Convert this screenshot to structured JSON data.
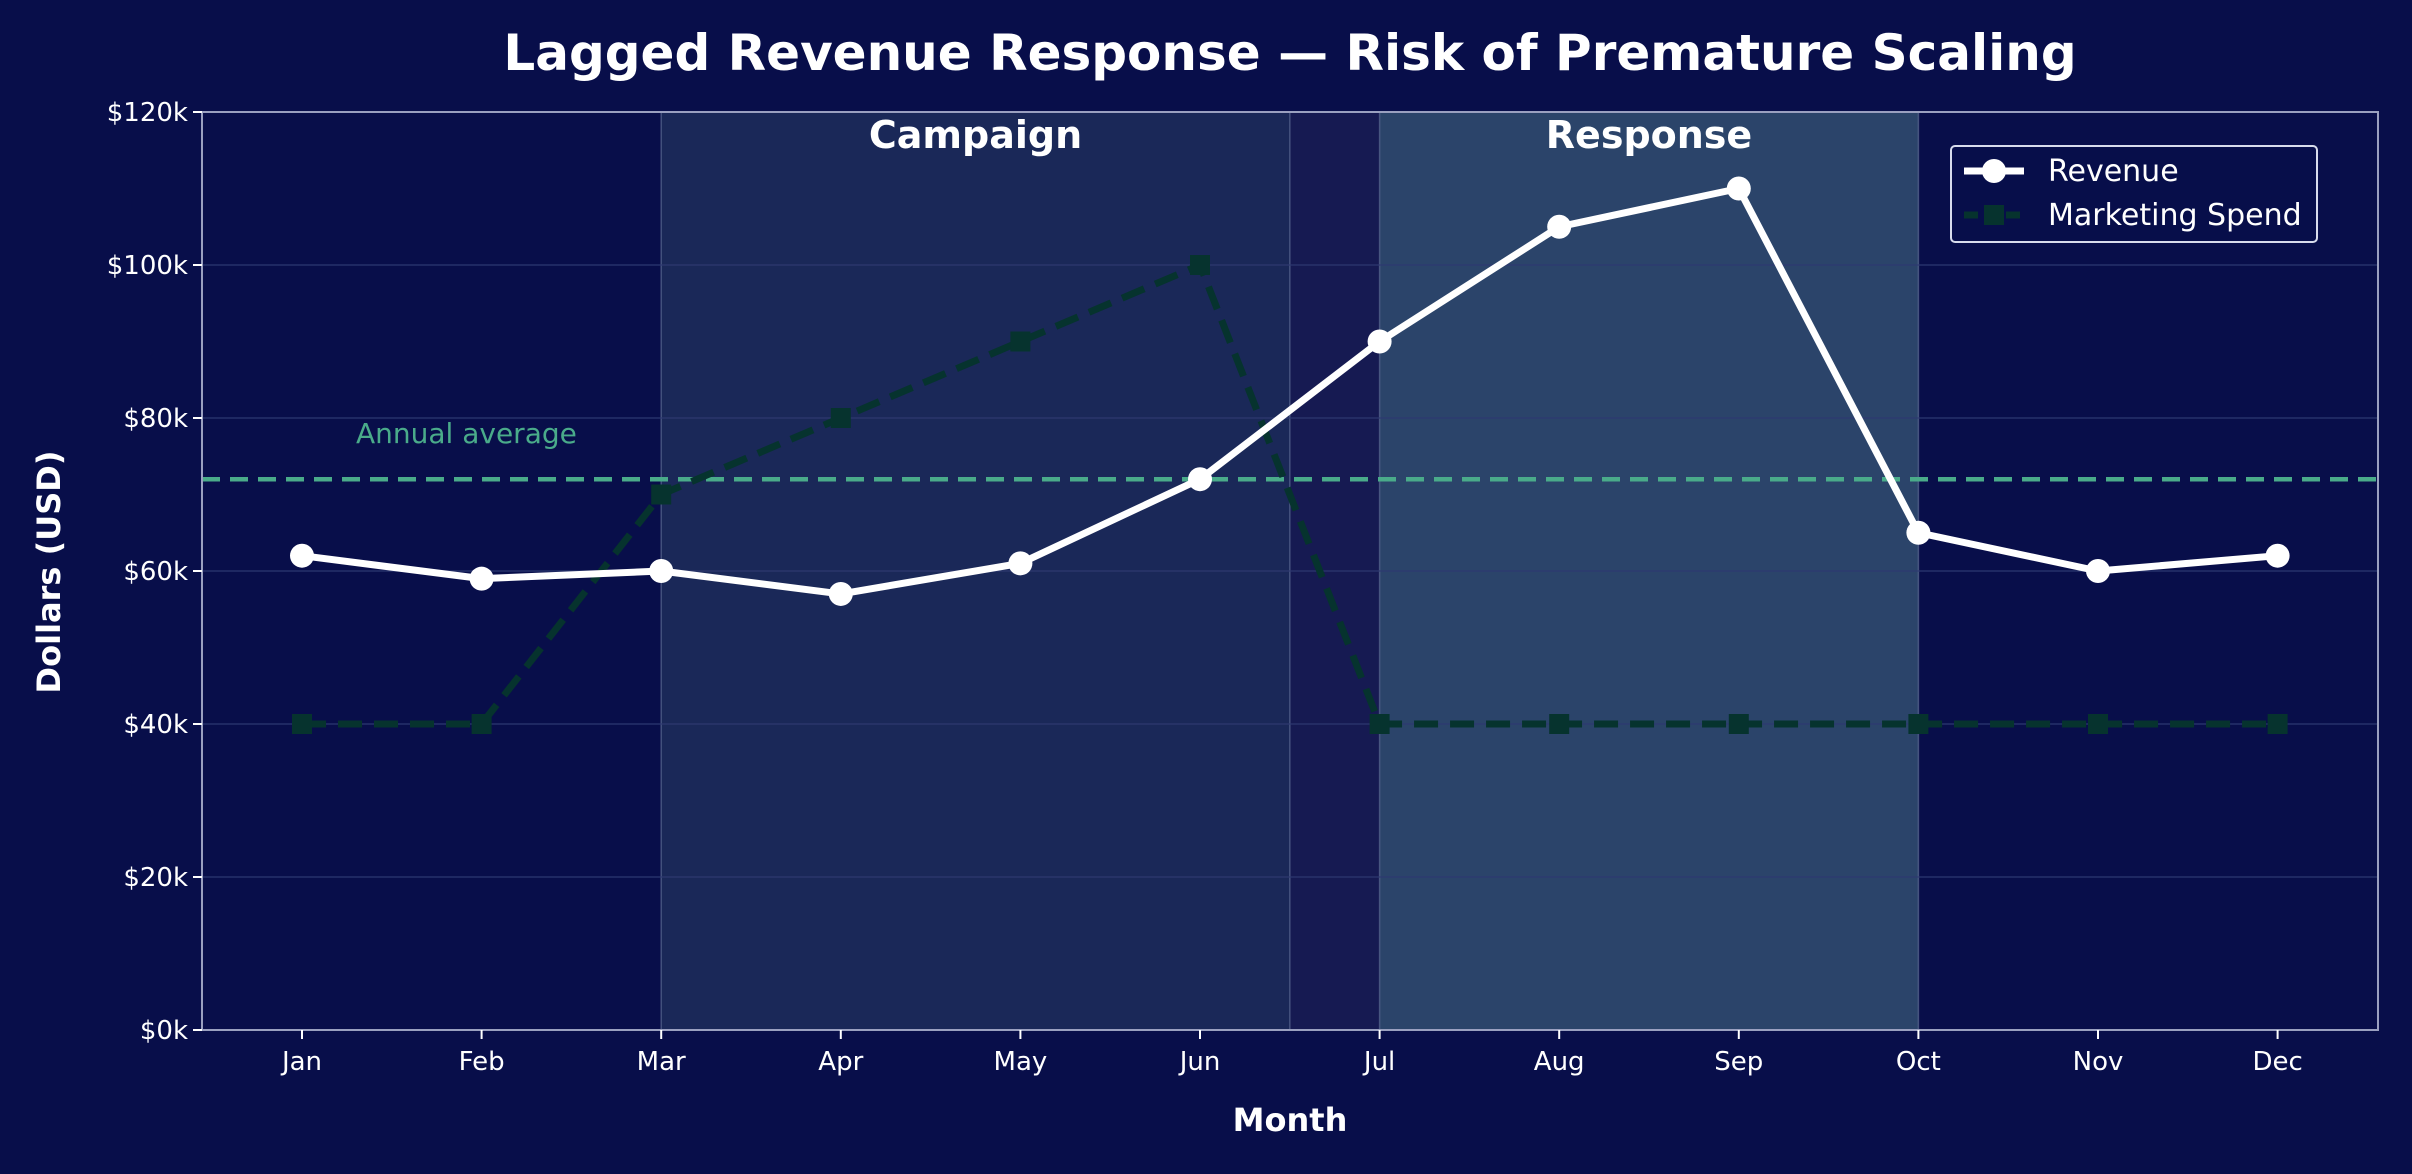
{
  "chart_data": {
    "type": "line",
    "title": "Lagged Revenue Response — Risk of Premature Scaling",
    "xlabel": "Month",
    "ylabel": "Dollars (USD)",
    "categories": [
      "Jan",
      "Feb",
      "Mar",
      "Apr",
      "May",
      "Jun",
      "Jul",
      "Aug",
      "Sep",
      "Oct",
      "Nov",
      "Dec"
    ],
    "ylim": [
      0,
      120000
    ],
    "yticks": [
      0,
      20000,
      40000,
      60000,
      80000,
      100000,
      120000
    ],
    "ytick_labels": [
      "$0k",
      "$20k",
      "$40k",
      "$60k",
      "$80k",
      "$100k",
      "$120k"
    ],
    "grid": true,
    "series": [
      {
        "name": "Revenue",
        "values": [
          62000,
          59000,
          60000,
          57000,
          61000,
          72000,
          90000,
          105000,
          110000,
          65000,
          60000,
          62000
        ],
        "color": "#ffffff",
        "style": "solid",
        "marker": "circle"
      },
      {
        "name": "Marketing Spend",
        "values": [
          40000,
          40000,
          70000,
          80000,
          90000,
          100000,
          40000,
          40000,
          40000,
          40000,
          40000,
          40000
        ],
        "color": "#06332e",
        "style": "dashed",
        "marker": "square"
      }
    ],
    "reference_line": {
      "label": "Annual average",
      "value": 72000,
      "color": "#4aab8a"
    },
    "shaded_regions": [
      {
        "label": "Campaign",
        "start": "Mar",
        "end": "Jun",
        "end_offset": 0.5,
        "color": "#1a2858"
      },
      {
        "label": "Response",
        "start": "Jul",
        "end": "Oct",
        "end_offset": 0,
        "color": "#2b446a"
      }
    ],
    "legend_position": "top-right",
    "colors": {
      "background": "#080e4a",
      "gap_region": "#161a52",
      "grid": "#2e3a72",
      "spine": "#9aa0c0"
    }
  }
}
